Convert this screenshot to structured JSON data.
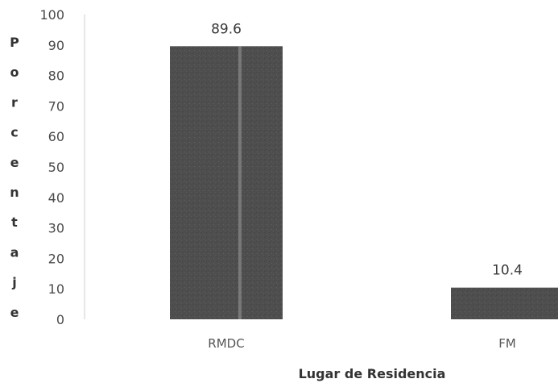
{
  "chart_data": {
    "type": "bar",
    "categories": [
      "RMDC",
      "FM"
    ],
    "values": [
      89.6,
      10.4
    ],
    "data_labels": [
      "89.6",
      "10.4"
    ],
    "title": "",
    "xlabel": "Lugar de Residencia",
    "ylabel": "Porcentaje",
    "ylim": [
      0,
      100
    ],
    "yticks": [
      "0",
      "10",
      "20",
      "30",
      "40",
      "50",
      "60",
      "70",
      "80",
      "90",
      "100"
    ],
    "grid": false,
    "legend": "none",
    "colors": {
      "bar": "#4d4d4d",
      "axis": "#cfcfcf"
    }
  }
}
